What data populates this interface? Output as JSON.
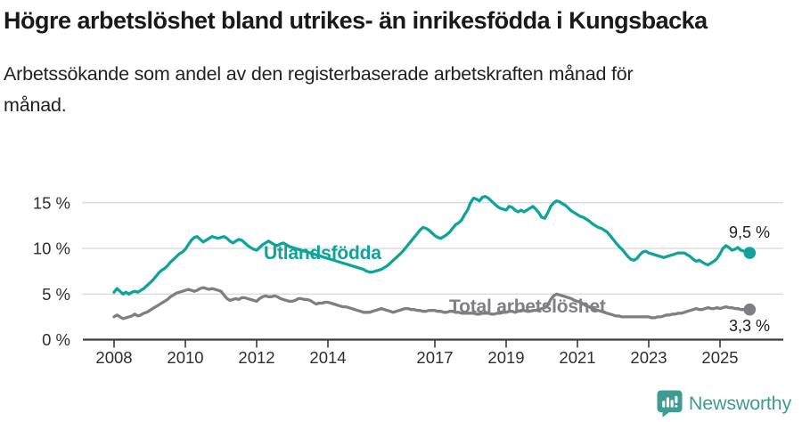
{
  "title": "Högre arbetslöshet bland utrikes- än inrikesfödda i Kungsbacka",
  "subtitle": "Arbetssökande som andel av den registerbaserade arbetskraften månad för månad.",
  "branding": {
    "logo_text": "Newsworthy",
    "logo_color": "#3f9c95",
    "logo_icon": "bar-chart-speech-bubble-icon"
  },
  "chart_data": {
    "type": "line",
    "title": "Högre arbetslöshet bland utrikes- än inrikesfödda i Kungsbacka",
    "subtitle": "Arbetssökande som andel av den registerbaserade arbetskraften månad för månad.",
    "x_unit": "month",
    "x_start": "2008-01",
    "x_end": "2025-11",
    "x_ticks": [
      {
        "year": 2008,
        "label": "2008"
      },
      {
        "year": 2010,
        "label": "2010"
      },
      {
        "year": 2012,
        "label": "2012"
      },
      {
        "year": 2014,
        "label": "2014"
      },
      {
        "year": 2017,
        "label": "2017"
      },
      {
        "year": 2019,
        "label": "2019"
      },
      {
        "year": 2021,
        "label": "2021"
      },
      {
        "year": 2023,
        "label": "2023"
      },
      {
        "year": 2025,
        "label": "2025"
      }
    ],
    "y_ticks": [
      {
        "value": 0,
        "label": "0 %"
      },
      {
        "value": 5,
        "label": "5 %"
      },
      {
        "value": 10,
        "label": "10 %"
      },
      {
        "value": 15,
        "label": "15 %"
      }
    ],
    "ylim": [
      0,
      16.5
    ],
    "grid": true,
    "grid_color": "#d8d8d8",
    "axis_color": "#3b3b3b",
    "legend_position": "inline-labels",
    "series": [
      {
        "name": "Utlandsfödda",
        "color": "#10a39b",
        "end_label": "9,5 %",
        "end_value": 9.5,
        "values": [
          5.2,
          5.6,
          5.3,
          5.0,
          5.2,
          5.0,
          5.2,
          5.3,
          5.2,
          5.4,
          5.6,
          5.9,
          6.2,
          6.5,
          6.9,
          7.3,
          7.6,
          7.8,
          8.1,
          8.5,
          8.8,
          9.1,
          9.4,
          9.6,
          9.9,
          10.4,
          10.9,
          11.2,
          11.3,
          11.0,
          10.7,
          10.9,
          11.1,
          11.3,
          11.2,
          11.1,
          11.2,
          11.3,
          11.1,
          10.8,
          10.6,
          10.8,
          11.0,
          10.9,
          10.6,
          10.3,
          10.1,
          9.9,
          9.8,
          10.1,
          10.4,
          10.6,
          10.8,
          10.6,
          10.4,
          10.3,
          10.5,
          10.6,
          10.4,
          10.2,
          10.1,
          10.0,
          9.9,
          9.8,
          9.7,
          9.6,
          9.5,
          9.4,
          9.3,
          9.2,
          9.1,
          9.0,
          8.9,
          8.8,
          8.7,
          8.6,
          8.5,
          8.4,
          8.3,
          8.2,
          8.1,
          8.0,
          7.9,
          7.8,
          7.7,
          7.5,
          7.4,
          7.4,
          7.5,
          7.6,
          7.7,
          7.9,
          8.1,
          8.4,
          8.7,
          9.0,
          9.3,
          9.6,
          10.0,
          10.4,
          10.8,
          11.2,
          11.6,
          12.0,
          12.3,
          12.2,
          12.0,
          11.7,
          11.4,
          11.2,
          11.1,
          11.3,
          11.5,
          11.8,
          12.2,
          12.6,
          12.8,
          13.1,
          13.7,
          14.2,
          15.0,
          15.5,
          15.4,
          15.2,
          15.6,
          15.7,
          15.5,
          15.2,
          14.9,
          14.6,
          14.4,
          14.3,
          14.2,
          14.6,
          14.5,
          14.2,
          14.0,
          14.2,
          14.0,
          14.2,
          14.4,
          14.6,
          14.3,
          13.9,
          13.4,
          13.3,
          13.9,
          14.6,
          15.0,
          15.2,
          15.1,
          14.9,
          14.7,
          14.4,
          14.1,
          13.9,
          13.7,
          13.5,
          13.4,
          13.2,
          13.0,
          12.7,
          12.5,
          12.3,
          12.2,
          12.0,
          11.8,
          11.4,
          11.0,
          10.6,
          10.2,
          9.9,
          9.5,
          9.1,
          8.8,
          8.7,
          8.9,
          9.3,
          9.6,
          9.7,
          9.5,
          9.4,
          9.3,
          9.2,
          9.1,
          9.0,
          9.1,
          9.2,
          9.3,
          9.4,
          9.5,
          9.5,
          9.5,
          9.3,
          9.1,
          8.8,
          8.6,
          8.7,
          8.5,
          8.3,
          8.2,
          8.4,
          8.6,
          8.9,
          9.4,
          10.0,
          10.3,
          10.1,
          9.8,
          9.9,
          10.1,
          9.8,
          9.7,
          9.6,
          9.5
        ]
      },
      {
        "name": "Total arbetslöshet",
        "color": "#7e7f83",
        "end_label": "3,3 %",
        "end_value": 3.3,
        "values": [
          2.5,
          2.7,
          2.5,
          2.3,
          2.4,
          2.5,
          2.6,
          2.8,
          2.6,
          2.7,
          2.9,
          3.0,
          3.2,
          3.4,
          3.6,
          3.8,
          4.0,
          4.2,
          4.4,
          4.7,
          4.9,
          5.1,
          5.2,
          5.3,
          5.4,
          5.5,
          5.4,
          5.3,
          5.4,
          5.6,
          5.7,
          5.6,
          5.5,
          5.6,
          5.5,
          5.4,
          5.3,
          4.9,
          4.5,
          4.3,
          4.4,
          4.5,
          4.4,
          4.6,
          4.6,
          4.5,
          4.4,
          4.3,
          4.2,
          4.5,
          4.7,
          4.8,
          4.7,
          4.7,
          4.8,
          4.7,
          4.5,
          4.4,
          4.3,
          4.2,
          4.2,
          4.3,
          4.5,
          4.5,
          4.4,
          4.4,
          4.3,
          4.1,
          3.9,
          4.0,
          4.0,
          4.1,
          4.1,
          4.0,
          3.9,
          3.8,
          3.7,
          3.6,
          3.6,
          3.5,
          3.4,
          3.3,
          3.2,
          3.1,
          3.0,
          3.0,
          3.0,
          3.1,
          3.2,
          3.3,
          3.4,
          3.3,
          3.2,
          3.1,
          3.0,
          3.1,
          3.2,
          3.3,
          3.4,
          3.4,
          3.3,
          3.3,
          3.2,
          3.2,
          3.1,
          3.1,
          3.2,
          3.2,
          3.2,
          3.1,
          3.1,
          3.0,
          3.0,
          3.1,
          3.1,
          3.0,
          3.0,
          2.9,
          2.9,
          2.9,
          2.9,
          2.9,
          2.8,
          2.8,
          2.9,
          2.9,
          2.9,
          2.8,
          2.8,
          2.9,
          2.9,
          3.0,
          3.0,
          3.1,
          3.1,
          3.0,
          3.1,
          3.2,
          3.2,
          3.1,
          3.1,
          3.2,
          3.2,
          3.3,
          3.4,
          3.5,
          3.8,
          4.4,
          4.8,
          5.0,
          4.9,
          4.8,
          4.7,
          4.6,
          4.5,
          4.3,
          4.2,
          4.1,
          3.9,
          3.7,
          3.6,
          3.4,
          3.3,
          3.2,
          3.1,
          3.0,
          2.9,
          2.8,
          2.7,
          2.6,
          2.6,
          2.5,
          2.5,
          2.5,
          2.5,
          2.5,
          2.5,
          2.5,
          2.5,
          2.5,
          2.5,
          2.4,
          2.4,
          2.5,
          2.5,
          2.6,
          2.7,
          2.7,
          2.8,
          2.8,
          2.9,
          2.9,
          3.0,
          3.1,
          3.2,
          3.3,
          3.4,
          3.3,
          3.3,
          3.4,
          3.5,
          3.4,
          3.4,
          3.5,
          3.4,
          3.5,
          3.6,
          3.5,
          3.5,
          3.4,
          3.4,
          3.3,
          3.3,
          3.2,
          3.3
        ]
      }
    ]
  }
}
